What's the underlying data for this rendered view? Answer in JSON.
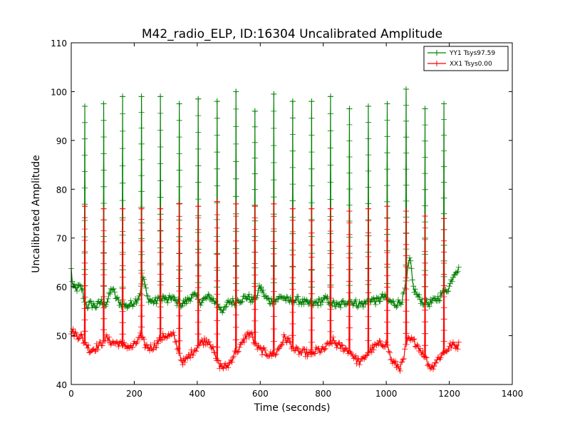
{
  "chart_data": {
    "type": "line",
    "title": "M42_radio_ELP, ID:16304 Uncalibrated Amplitude",
    "xlabel": "Time (seconds)",
    "ylabel": "Uncalibrated Amplitude",
    "xlim": [
      0,
      1400
    ],
    "ylim": [
      40,
      110
    ],
    "xticks": [
      0,
      200,
      400,
      600,
      800,
      1000,
      1200,
      1400
    ],
    "yticks": [
      40,
      50,
      60,
      70,
      80,
      90,
      100,
      110
    ],
    "xtick_labels": [
      "0",
      "200",
      "400",
      "600",
      "800",
      "1000",
      "1200",
      "1400"
    ],
    "ytick_labels": [
      "40",
      "50",
      "60",
      "70",
      "80",
      "90",
      "100",
      "110"
    ],
    "grid": false,
    "legend_position": "top-right",
    "marker": "plus",
    "series": [
      {
        "name": "YY1 Tsys97.59",
        "color": "#008000",
        "baseline": [
          [
            0,
            63.5
          ],
          [
            5,
            60
          ],
          [
            15,
            59.5
          ],
          [
            25,
            60
          ],
          [
            35,
            59.5
          ],
          [
            42,
            57
          ],
          [
            50,
            56
          ],
          [
            60,
            56.5
          ],
          [
            80,
            56
          ],
          [
            95,
            57
          ],
          [
            110,
            56.5
          ],
          [
            120,
            58
          ],
          [
            130,
            60
          ],
          [
            140,
            58
          ],
          [
            150,
            57
          ],
          [
            160,
            56.5
          ],
          [
            175,
            56
          ],
          [
            190,
            56.5
          ],
          [
            200,
            57
          ],
          [
            215,
            58
          ],
          [
            230,
            62
          ],
          [
            240,
            58
          ],
          [
            255,
            57
          ],
          [
            270,
            57
          ],
          [
            290,
            58
          ],
          [
            305,
            57
          ],
          [
            320,
            58
          ],
          [
            330,
            57
          ],
          [
            350,
            56.5
          ],
          [
            365,
            57
          ],
          [
            380,
            58
          ],
          [
            395,
            58
          ],
          [
            410,
            57
          ],
          [
            425,
            57.5
          ],
          [
            440,
            58
          ],
          [
            455,
            57
          ],
          [
            470,
            56
          ],
          [
            485,
            55
          ],
          [
            500,
            57
          ],
          [
            520,
            57
          ],
          [
            540,
            57.5
          ],
          [
            560,
            58
          ],
          [
            580,
            57
          ],
          [
            600,
            60
          ],
          [
            615,
            58
          ],
          [
            630,
            57
          ],
          [
            650,
            57.5
          ],
          [
            670,
            58
          ],
          [
            690,
            57
          ],
          [
            710,
            57.5
          ],
          [
            730,
            57
          ],
          [
            750,
            56.5
          ],
          [
            770,
            56.5
          ],
          [
            790,
            57
          ],
          [
            810,
            57.5
          ],
          [
            830,
            56.5
          ],
          [
            850,
            56
          ],
          [
            870,
            57
          ],
          [
            890,
            57
          ],
          [
            910,
            56.5
          ],
          [
            930,
            56.5
          ],
          [
            950,
            57.5
          ],
          [
            970,
            57
          ],
          [
            990,
            58
          ],
          [
            1010,
            57
          ],
          [
            1030,
            56.5
          ],
          [
            1045,
            57
          ],
          [
            1055,
            58
          ],
          [
            1065,
            62
          ],
          [
            1075,
            66
          ],
          [
            1085,
            60
          ],
          [
            1100,
            58
          ],
          [
            1115,
            57
          ],
          [
            1130,
            56.5
          ],
          [
            1150,
            57
          ],
          [
            1170,
            58
          ],
          [
            1185,
            59
          ],
          [
            1200,
            60
          ],
          [
            1210,
            62
          ],
          [
            1220,
            63.5
          ],
          [
            1230,
            63.5
          ]
        ],
        "peaks": [
          {
            "x": 43,
            "y": 97
          },
          {
            "x": 103,
            "y": 97.5
          },
          {
            "x": 163,
            "y": 99
          },
          {
            "x": 223,
            "y": 99
          },
          {
            "x": 283,
            "y": 99
          },
          {
            "x": 343,
            "y": 97.5
          },
          {
            "x": 403,
            "y": 98.5
          },
          {
            "x": 463,
            "y": 98
          },
          {
            "x": 523,
            "y": 100
          },
          {
            "x": 583,
            "y": 96
          },
          {
            "x": 643,
            "y": 99.5
          },
          {
            "x": 703,
            "y": 98
          },
          {
            "x": 763,
            "y": 98
          },
          {
            "x": 823,
            "y": 99
          },
          {
            "x": 883,
            "y": 96.5
          },
          {
            "x": 943,
            "y": 97
          },
          {
            "x": 1003,
            "y": 97.5
          },
          {
            "x": 1063,
            "y": 100.5
          },
          {
            "x": 1123,
            "y": 96.5
          },
          {
            "x": 1183,
            "y": 97.5
          }
        ]
      },
      {
        "name": "XX1 Tsys0.00",
        "color": "#ff0000",
        "baseline": [
          [
            0,
            51
          ],
          [
            10,
            50.5
          ],
          [
            20,
            50
          ],
          [
            30,
            50
          ],
          [
            38,
            49
          ],
          [
            50,
            48
          ],
          [
            60,
            47
          ],
          [
            75,
            47.5
          ],
          [
            90,
            48
          ],
          [
            110,
            49.5
          ],
          [
            120,
            49
          ],
          [
            135,
            48.5
          ],
          [
            150,
            48.5
          ],
          [
            160,
            48
          ],
          [
            175,
            48
          ],
          [
            190,
            47.5
          ],
          [
            200,
            48
          ],
          [
            212,
            49
          ],
          [
            220,
            50
          ],
          [
            235,
            48
          ],
          [
            250,
            47.5
          ],
          [
            265,
            48
          ],
          [
            280,
            49
          ],
          [
            295,
            50
          ],
          [
            310,
            50
          ],
          [
            325,
            50
          ],
          [
            335,
            48
          ],
          [
            350,
            45
          ],
          [
            360,
            44.5
          ],
          [
            375,
            46
          ],
          [
            390,
            47
          ],
          [
            410,
            48.5
          ],
          [
            425,
            49
          ],
          [
            440,
            49
          ],
          [
            455,
            46
          ],
          [
            470,
            44
          ],
          [
            485,
            43.5
          ],
          [
            500,
            44
          ],
          [
            515,
            46
          ],
          [
            540,
            48
          ],
          [
            555,
            50
          ],
          [
            570,
            50.5
          ],
          [
            585,
            48
          ],
          [
            600,
            47
          ],
          [
            620,
            46.5
          ],
          [
            635,
            46
          ],
          [
            650,
            46.5
          ],
          [
            665,
            48
          ],
          [
            675,
            49.5
          ],
          [
            690,
            49
          ],
          [
            710,
            47
          ],
          [
            730,
            46.5
          ],
          [
            745,
            46.5
          ],
          [
            760,
            46
          ],
          [
            780,
            47
          ],
          [
            800,
            47
          ],
          [
            815,
            48
          ],
          [
            830,
            49
          ],
          [
            845,
            48
          ],
          [
            865,
            47.5
          ],
          [
            880,
            47
          ],
          [
            895,
            46
          ],
          [
            905,
            45
          ],
          [
            920,
            44.5
          ],
          [
            935,
            46
          ],
          [
            950,
            47
          ],
          [
            970,
            48
          ],
          [
            990,
            48.5
          ],
          [
            1005,
            48
          ],
          [
            1015,
            45
          ],
          [
            1030,
            44
          ],
          [
            1045,
            43.5
          ],
          [
            1055,
            45
          ],
          [
            1065,
            49
          ],
          [
            1080,
            49
          ],
          [
            1095,
            48.5
          ],
          [
            1105,
            47.5
          ],
          [
            1120,
            46
          ],
          [
            1135,
            44
          ],
          [
            1145,
            43.5
          ],
          [
            1160,
            45
          ],
          [
            1175,
            46
          ],
          [
            1190,
            47
          ],
          [
            1205,
            48
          ],
          [
            1230,
            48
          ]
        ],
        "peaks": [
          {
            "x": 43,
            "y": 76.5
          },
          {
            "x": 103,
            "y": 76
          },
          {
            "x": 163,
            "y": 76
          },
          {
            "x": 223,
            "y": 76
          },
          {
            "x": 283,
            "y": 76
          },
          {
            "x": 343,
            "y": 77
          },
          {
            "x": 403,
            "y": 76.5
          },
          {
            "x": 463,
            "y": 77.5
          },
          {
            "x": 523,
            "y": 77
          },
          {
            "x": 583,
            "y": 76.5
          },
          {
            "x": 643,
            "y": 77
          },
          {
            "x": 703,
            "y": 76
          },
          {
            "x": 763,
            "y": 76
          },
          {
            "x": 823,
            "y": 76
          },
          {
            "x": 883,
            "y": 75.5
          },
          {
            "x": 943,
            "y": 76
          },
          {
            "x": 1003,
            "y": 76.5
          },
          {
            "x": 1063,
            "y": 75.5
          },
          {
            "x": 1123,
            "y": 74.5
          },
          {
            "x": 1183,
            "y": 74
          }
        ]
      }
    ]
  }
}
